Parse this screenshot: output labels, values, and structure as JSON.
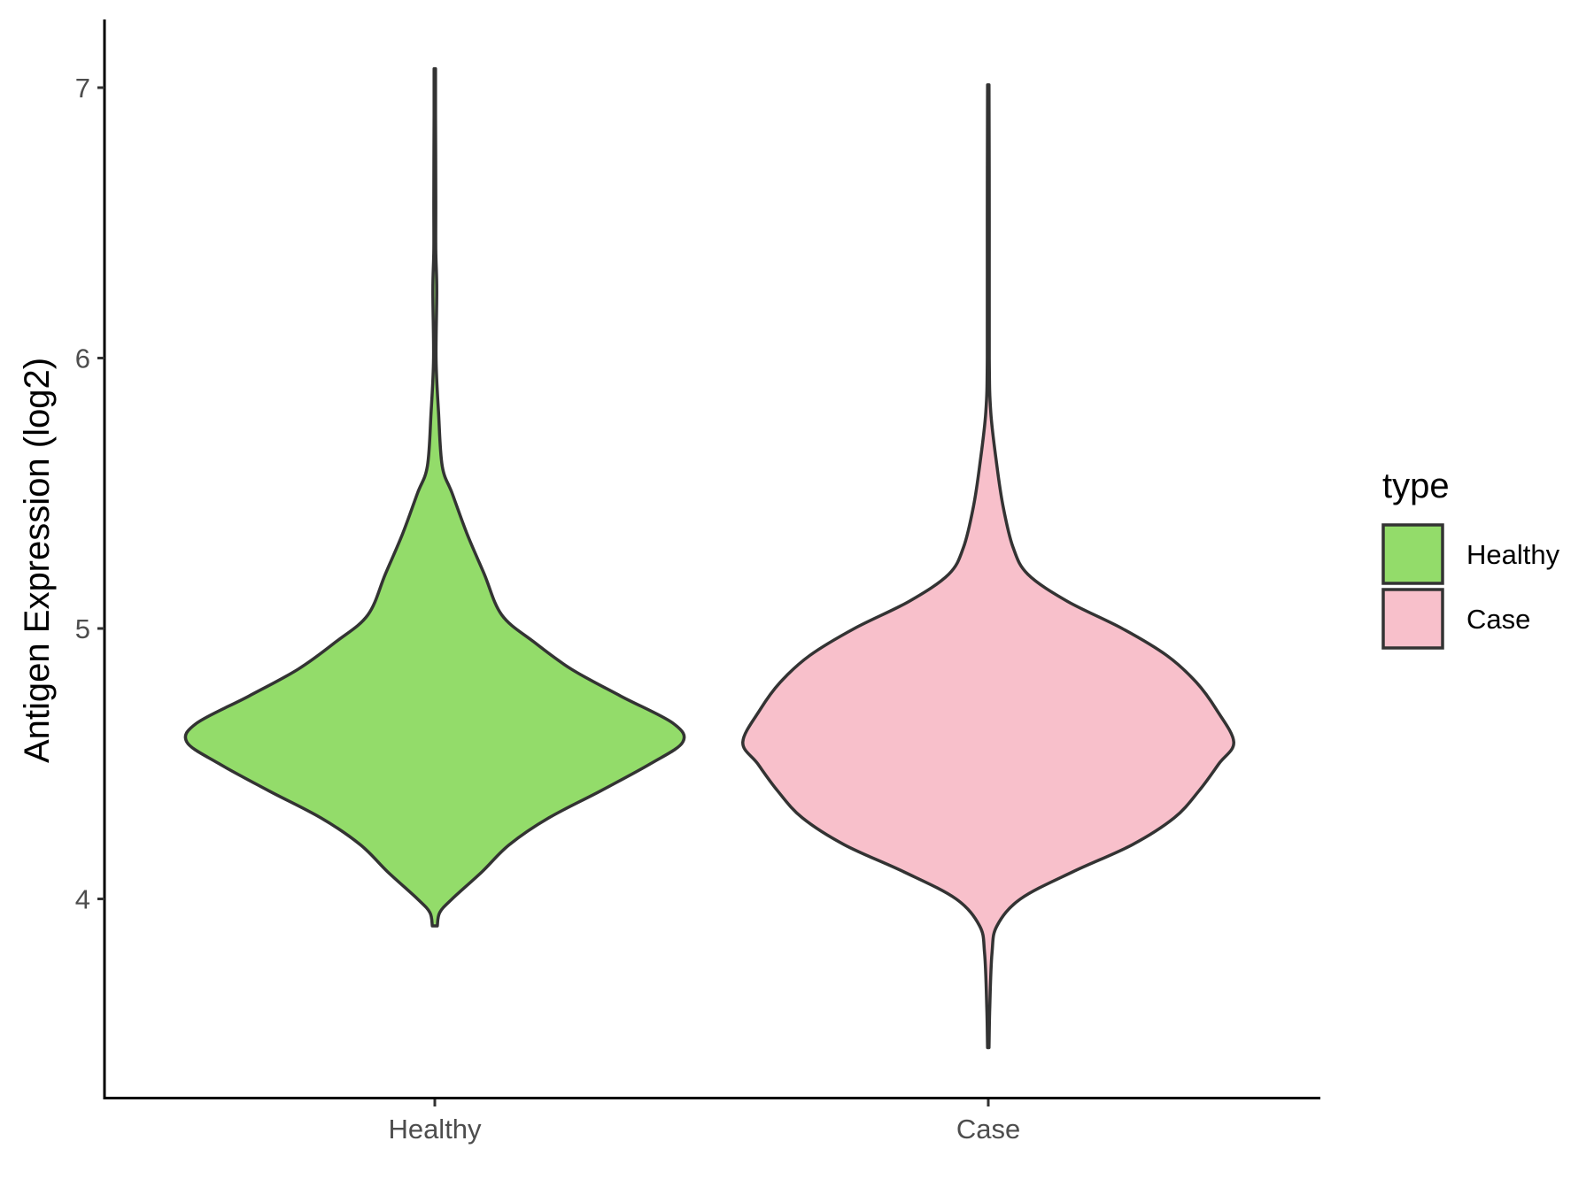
{
  "chart_data": {
    "type": "violin",
    "title": "",
    "xlabel": "",
    "ylabel": "Antigen Expression (log2)",
    "ylim": [
      3.3,
      7.25
    ],
    "yticks": [
      4,
      5,
      6,
      7
    ],
    "categories": [
      "Healthy",
      "Case"
    ],
    "legend": {
      "title": "type",
      "position": "right",
      "entries": [
        "Healthy",
        "Case"
      ]
    },
    "grid": false,
    "series": [
      {
        "name": "Healthy",
        "color": "#93DC6A",
        "min": 3.9,
        "max": 7.07,
        "density_profile": [
          [
            3.9,
            0.01
          ],
          [
            3.95,
            0.02
          ],
          [
            4.0,
            0.07
          ],
          [
            4.1,
            0.19
          ],
          [
            4.2,
            0.3
          ],
          [
            4.3,
            0.46
          ],
          [
            4.4,
            0.67
          ],
          [
            4.5,
            0.87
          ],
          [
            4.58,
            1.0
          ],
          [
            4.65,
            0.96
          ],
          [
            4.75,
            0.75
          ],
          [
            4.85,
            0.55
          ],
          [
            4.95,
            0.4
          ],
          [
            5.05,
            0.27
          ],
          [
            5.2,
            0.2
          ],
          [
            5.35,
            0.13
          ],
          [
            5.5,
            0.07
          ],
          [
            5.6,
            0.03
          ],
          [
            5.8,
            0.015
          ],
          [
            6.0,
            0.005
          ],
          [
            6.25,
            0.008
          ],
          [
            6.4,
            0.004
          ],
          [
            6.6,
            0.004
          ],
          [
            6.9,
            0.003
          ],
          [
            7.07,
            0.003
          ]
        ]
      },
      {
        "name": "Case",
        "color": "#F8C0CB",
        "min": 3.45,
        "max": 7.01,
        "density_profile": [
          [
            3.45,
            0.003
          ],
          [
            3.6,
            0.006
          ],
          [
            3.8,
            0.015
          ],
          [
            3.9,
            0.035
          ],
          [
            4.0,
            0.13
          ],
          [
            4.1,
            0.34
          ],
          [
            4.2,
            0.58
          ],
          [
            4.3,
            0.75
          ],
          [
            4.4,
            0.85
          ],
          [
            4.5,
            0.93
          ],
          [
            4.58,
            0.99
          ],
          [
            4.7,
            0.92
          ],
          [
            4.8,
            0.84
          ],
          [
            4.9,
            0.72
          ],
          [
            5.0,
            0.54
          ],
          [
            5.1,
            0.32
          ],
          [
            5.2,
            0.16
          ],
          [
            5.3,
            0.1
          ],
          [
            5.45,
            0.06
          ],
          [
            5.6,
            0.035
          ],
          [
            5.8,
            0.01
          ],
          [
            6.0,
            0.004
          ],
          [
            6.5,
            0.004
          ],
          [
            7.01,
            0.003
          ]
        ]
      }
    ]
  }
}
